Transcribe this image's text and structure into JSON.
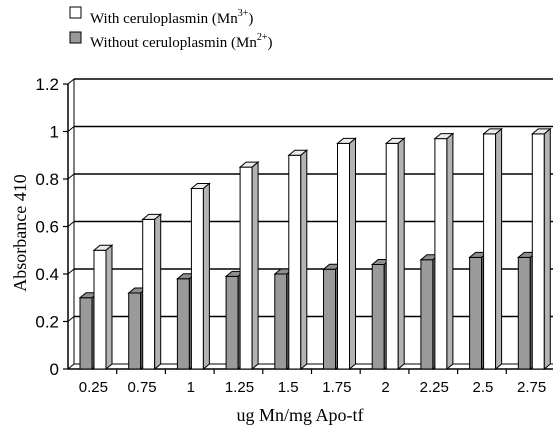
{
  "chart_data": {
    "type": "bar",
    "categories": [
      "0.25",
      "0.75",
      "1",
      "1.25",
      "1.5",
      "1.75",
      "2",
      "2.25",
      "2.5",
      "2.75"
    ],
    "series": [
      {
        "name": "With ceruloplasmin (Mn3+)",
        "label_parts": {
          "pre": "With ceruloplasmin (Mn",
          "sup": "3+",
          "post": ")"
        },
        "color": "#ffffff",
        "values": [
          0.5,
          0.63,
          0.76,
          0.85,
          0.9,
          0.95,
          0.95,
          0.97,
          0.99,
          0.99
        ]
      },
      {
        "name": "Without ceruloplasmin (Mn2+)",
        "label_parts": {
          "pre": "Without ceruloplasmin (Mn",
          "sup": "2+",
          "post": ")"
        },
        "color": "#9a9a9a",
        "values": [
          0.3,
          0.32,
          0.38,
          0.39,
          0.4,
          0.42,
          0.44,
          0.46,
          0.47,
          0.47
        ]
      }
    ],
    "y_ticks": [
      "0",
      "0.2",
      "0.4",
      "0.6",
      "0.8",
      "1",
      "1.2"
    ],
    "ylim": [
      0,
      1.2
    ],
    "xlabel": "ug Mn/mg  Apo-tf",
    "ylabel": "Absorbance  410",
    "grid": true,
    "legend_position": "top-left",
    "style": "3d"
  }
}
